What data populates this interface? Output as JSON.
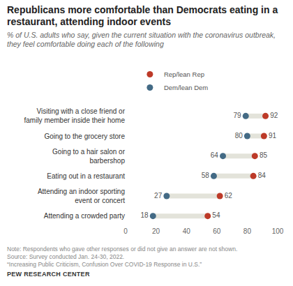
{
  "chart_data": {
    "type": "dot",
    "title": "Republicans more comfortable than Democrats eating in a restaurant, attending indoor events",
    "subtitle": "% of U.S. adults who say, given the current situation with the coronavirus outbreak, they feel comfortable doing each of the following",
    "categories": [
      "Visiting with a close friend or family member inside their home",
      "Going to the grocery store",
      "Going to a hair salon or barbershop",
      "Eating out in a restaurant",
      "Attending an indoor sporting event or concert",
      "Attending a crowded party"
    ],
    "series": [
      {
        "name": "Rep/lean Rep",
        "color": "#bd3a28",
        "values": [
          92,
          91,
          85,
          84,
          62,
          54
        ]
      },
      {
        "name": "Dem/lean Dem",
        "color": "#436a85",
        "values": [
          79,
          80,
          64,
          58,
          27,
          18
        ]
      }
    ],
    "xlim": [
      0,
      100
    ],
    "xticks": [
      0,
      20,
      40,
      60,
      80,
      100
    ],
    "grid": false,
    "legend": "top",
    "data_labels": true,
    "notes": [
      "Note: Respondents who gave other responses or did not give an answer are not shown.",
      "Source: Survey conducted Jan. 24-30, 2022.",
      "“Increasing Public Criticism, Confusion Over COVID-19 Response in U.S.”"
    ],
    "credit": "PEW RESEARCH CENTER"
  }
}
